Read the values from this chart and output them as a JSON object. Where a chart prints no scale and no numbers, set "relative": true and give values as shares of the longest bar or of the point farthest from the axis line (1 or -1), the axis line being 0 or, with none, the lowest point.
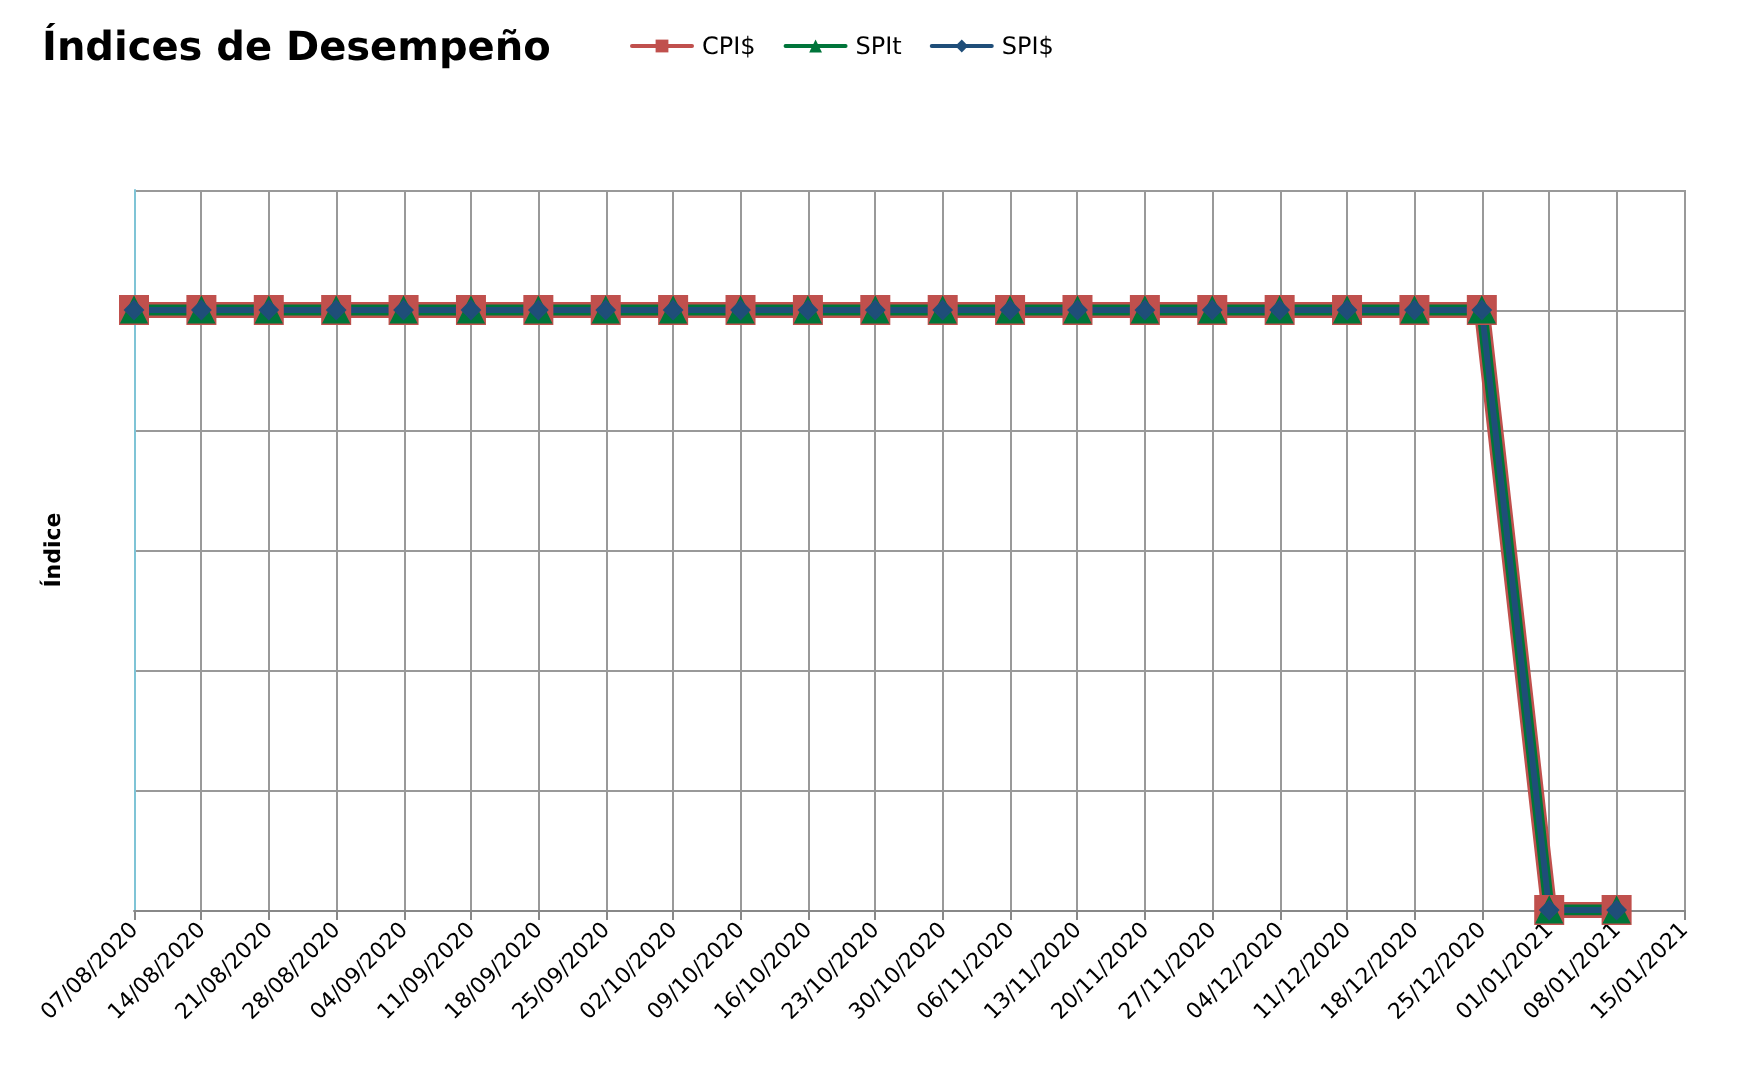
{
  "chart_data": {
    "type": "line",
    "title": "Índices de Desempeño",
    "ylabel": "Índice",
    "relative": true,
    "grid": true,
    "legend": "top",
    "categories": [
      "07/08/2020",
      "14/08/2020",
      "21/08/2020",
      "28/08/2020",
      "04/09/2020",
      "11/09/2020",
      "18/09/2020",
      "25/09/2020",
      "02/10/2020",
      "09/10/2020",
      "16/10/2020",
      "23/10/2020",
      "30/10/2020",
      "06/11/2020",
      "13/11/2020",
      "20/11/2020",
      "27/11/2020",
      "04/12/2020",
      "11/12/2020",
      "18/12/2020",
      "25/12/2020",
      "01/01/2021",
      "08/01/2021",
      "15/01/2021"
    ],
    "series": [
      {
        "name": "CPI$",
        "color": "#c0504d",
        "marker": "square",
        "values": [
          1,
          1,
          1,
          1,
          1,
          1,
          1,
          1,
          1,
          1,
          1,
          1,
          1,
          1,
          1,
          1,
          1,
          1,
          1,
          1,
          1,
          0,
          0,
          null
        ]
      },
      {
        "name": "SPIt",
        "color": "#00753a",
        "marker": "triangle",
        "values": [
          1,
          1,
          1,
          1,
          1,
          1,
          1,
          1,
          1,
          1,
          1,
          1,
          1,
          1,
          1,
          1,
          1,
          1,
          1,
          1,
          1,
          0,
          0,
          null
        ]
      },
      {
        "name": "SPI$",
        "color": "#1f4e79",
        "marker": "diamond",
        "values": [
          1,
          1,
          1,
          1,
          1,
          1,
          1,
          1,
          1,
          1,
          1,
          1,
          1,
          1,
          1,
          1,
          1,
          1,
          1,
          1,
          1,
          0,
          0,
          null
        ]
      }
    ]
  }
}
